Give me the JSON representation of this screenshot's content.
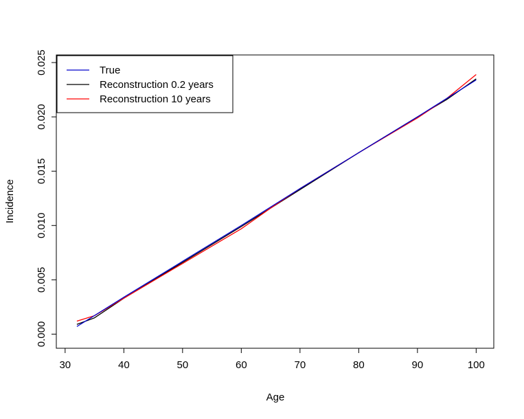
{
  "chart_data": {
    "type": "line",
    "title": "",
    "xlabel": "Age",
    "ylabel": "Incidence",
    "xlim": [
      28.5,
      103
    ],
    "ylim": [
      -0.0013,
      0.0257
    ],
    "x_ticks": [
      30,
      40,
      50,
      60,
      70,
      80,
      90,
      100
    ],
    "x_tick_labels": [
      "30",
      "40",
      "50",
      "60",
      "70",
      "80",
      "90",
      "100"
    ],
    "y_ticks": [
      0.0,
      0.005,
      0.01,
      0.015,
      0.02,
      0.025
    ],
    "y_tick_labels": [
      "0.000",
      "0.005",
      "0.010",
      "0.015",
      "0.020",
      "0.025"
    ],
    "grid": false,
    "legend_position": "top-left",
    "series": [
      {
        "name": "Reconstruction 0.2 years",
        "color": "#000000",
        "x": [
          32,
          35,
          40,
          50,
          60,
          70,
          80,
          90,
          95,
          100
        ],
        "y": [
          0.0009,
          0.0015,
          0.0033,
          0.0066,
          0.0099,
          0.0133,
          0.0167,
          0.02,
          0.0216,
          0.0235
        ]
      },
      {
        "name": "Reconstruction 10 years",
        "color": "#ff0000",
        "x": [
          32,
          35,
          40,
          50,
          55,
          60,
          65,
          70,
          80,
          90,
          95,
          100
        ],
        "y": [
          0.0012,
          0.0017,
          0.0033,
          0.0065,
          0.0081,
          0.0097,
          0.0116,
          0.0134,
          0.0167,
          0.0199,
          0.0217,
          0.0239
        ]
      },
      {
        "name": "True",
        "color": "#0000cc",
        "x": [
          32,
          40,
          50,
          60,
          70,
          80,
          90,
          100
        ],
        "y": [
          0.0007,
          0.0034,
          0.0067,
          0.01,
          0.0134,
          0.0167,
          0.02,
          0.0234
        ]
      }
    ],
    "legend_order": [
      "True",
      "Reconstruction 0.2 years",
      "Reconstruction 10 years"
    ]
  }
}
